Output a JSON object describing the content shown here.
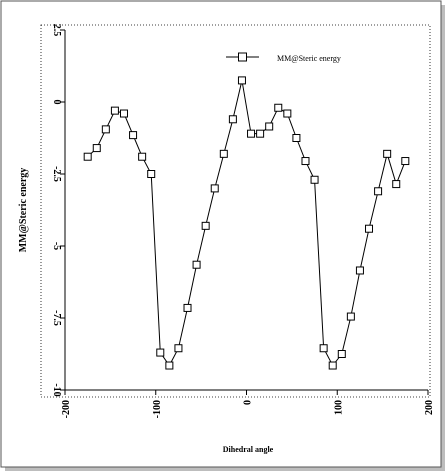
{
  "chart_data": {
    "type": "line",
    "title": "",
    "xlabel": "Dihedral angle",
    "ylabel": "MM@Steric energy",
    "xlim": [
      -200,
      200
    ],
    "ylim": [
      -10,
      2.5
    ],
    "x_ticks": [
      -200,
      -100,
      0,
      100,
      200
    ],
    "x_tick_labels": [
      "-200",
      "-100",
      "0",
      "100",
      "200"
    ],
    "y_ticks": [
      2.5,
      0,
      -2.5,
      -5,
      -7.5,
      -10
    ],
    "y_tick_labels": [
      "2.5",
      "0",
      "-2.5",
      "-5",
      "-7.5",
      "-10"
    ],
    "grid": false,
    "legend": "top-right",
    "series": [
      {
        "name": "MM@Steric energy",
        "marker": "open-square",
        "color": "#000000",
        "x": [
          -175,
          -165,
          -155,
          -145,
          -135,
          -125,
          -115,
          -105,
          -95,
          -85,
          -75,
          -65,
          -55,
          -45,
          -35,
          -25,
          -15,
          -5,
          5,
          15,
          25,
          35,
          45,
          55,
          65,
          75,
          85,
          95,
          105,
          115,
          125,
          135,
          145,
          155,
          165,
          175
        ],
        "y": [
          -1.9,
          -1.6,
          -0.95,
          -0.3,
          -0.4,
          -1.15,
          -1.9,
          -2.5,
          -8.7,
          -9.15,
          -8.55,
          -7.15,
          -5.65,
          -4.3,
          -3.0,
          -1.8,
          -0.6,
          0.75,
          -1.1,
          -1.1,
          -0.85,
          -0.2,
          -0.4,
          -1.25,
          -2.05,
          -2.7,
          -8.55,
          -9.15,
          -8.75,
          -7.45,
          -5.85,
          -4.4,
          -3.1,
          -1.8,
          -2.85,
          -2.05
        ]
      }
    ]
  }
}
